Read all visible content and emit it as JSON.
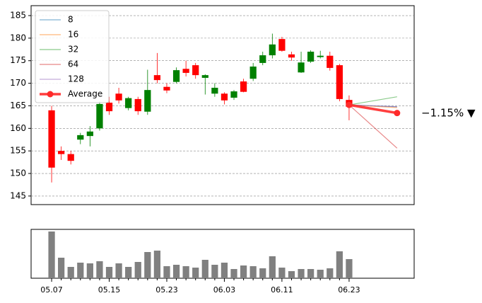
{
  "chart_data": {
    "type": "candlestick",
    "categories": [
      "05.07",
      null,
      null,
      null,
      null,
      null,
      "05.15",
      null,
      null,
      null,
      null,
      null,
      "05.23",
      null,
      null,
      null,
      null,
      null,
      "06.03",
      null,
      null,
      null,
      null,
      null,
      "06.11",
      null,
      null,
      null,
      null,
      null,
      null,
      "06.23"
    ],
    "open": [
      164.0,
      155.0,
      154.3,
      157.5,
      158.3,
      160.0,
      165.7,
      167.7,
      164.5,
      166.5,
      163.7,
      171.8,
      169.2,
      170.3,
      173.2,
      174.0,
      171.2,
      167.7,
      167.7,
      166.8,
      170.4,
      171.0,
      174.5,
      176.2,
      179.8,
      176.4,
      172.4,
      174.8,
      175.8,
      176.1,
      174.0,
      166.3
    ],
    "high": [
      165.0,
      156.0,
      155.0,
      159.0,
      160.5,
      166.0,
      167.0,
      169.0,
      167.0,
      167.0,
      173.0,
      176.7,
      170.0,
      173.5,
      175.0,
      174.5,
      172.0,
      170.0,
      168.0,
      168.5,
      171.0,
      174.5,
      177.0,
      181.0,
      180.3,
      177.0,
      177.0,
      177.3,
      177.2,
      177.0,
      174.3,
      167.3
    ],
    "low": [
      148.0,
      153.0,
      152.0,
      156.5,
      156.0,
      159.5,
      163.0,
      165.5,
      164.0,
      163.0,
      163.0,
      170.0,
      167.8,
      170.0,
      171.5,
      171.0,
      167.5,
      167.0,
      165.3,
      166.3,
      168.0,
      170.5,
      174.0,
      175.5,
      177.0,
      175.0,
      172.3,
      174.5,
      175.5,
      172.8,
      166.0,
      161.8
    ],
    "close": [
      151.3,
      154.3,
      152.8,
      158.5,
      159.3,
      165.4,
      163.8,
      166.2,
      166.7,
      163.8,
      168.5,
      170.7,
      168.4,
      172.9,
      172.3,
      171.8,
      171.8,
      169.0,
      166.2,
      168.2,
      168.1,
      173.7,
      176.2,
      178.6,
      177.2,
      175.7,
      174.6,
      177.0,
      176.1,
      173.4,
      166.5,
      164.8
    ],
    "up_color": "#008000",
    "down_color": "#ff0000",
    "xlim": [
      -2.14,
      37.78
    ],
    "ylim": [
      143.1,
      187.2
    ],
    "yticks": [
      145,
      150,
      155,
      160,
      165,
      170,
      175,
      180,
      185
    ],
    "grid": true,
    "legend": "upper left",
    "series": [
      {
        "name": "8",
        "color": "#1f77b4",
        "x": [
          31,
          36
        ],
        "values": [
          165.2,
          164.8
        ]
      },
      {
        "name": "16",
        "color": "#ff7f0e",
        "x": [
          31,
          36
        ],
        "values": [
          165.2,
          164.6
        ]
      },
      {
        "name": "32",
        "color": "#2ca02c",
        "x": [
          31,
          36
        ],
        "values": [
          165.2,
          167.0
        ]
      },
      {
        "name": "64",
        "color": "#d62728",
        "x": [
          31,
          36
        ],
        "values": [
          165.2,
          155.6
        ]
      },
      {
        "name": "128",
        "color": "#9467bd",
        "x": [
          31,
          36
        ],
        "values": [
          165.2,
          164.8
        ]
      },
      {
        "name": "Average",
        "color": "#ff2a2a",
        "x": [
          31,
          36
        ],
        "values": [
          165.2,
          163.4
        ]
      }
    ],
    "annotation": "−1.15% ▼",
    "annotation_color": "#ff0000",
    "volume": {
      "color": "#808080",
      "ylim": [
        0,
        69
      ],
      "values": [
        66,
        29,
        16,
        22,
        21,
        24,
        16,
        21,
        16,
        23,
        37,
        39,
        17,
        19,
        17,
        15,
        26,
        19,
        22,
        13,
        18,
        17,
        14,
        31,
        15,
        10,
        13,
        13,
        12,
        14,
        38,
        27
      ]
    }
  }
}
